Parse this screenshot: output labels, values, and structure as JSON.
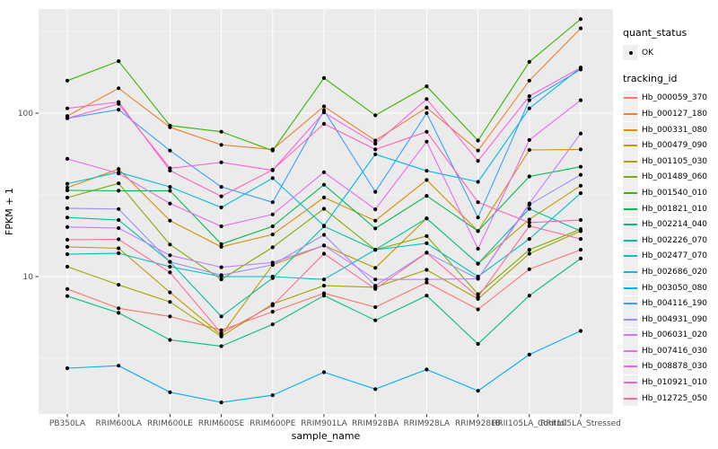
{
  "chart_data": {
    "type": "line",
    "title": "",
    "xlabel": "sample_name",
    "ylabel": "FPKM + 1",
    "y_scale": "log10",
    "y_ticks": [
      100,
      10
    ],
    "y_minor_ticks": [
      316.2,
      31.62,
      3.162
    ],
    "ylim": [
      1.4,
      440
    ],
    "grid": "on",
    "legend_position": "right",
    "marker": "point",
    "categories": [
      "PB350LA",
      "RRIM600LA",
      "RRIM600LE",
      "RRIM600SE",
      "RRIM600PE",
      "RRIM901LA",
      "RRIM928BA",
      "RRIM928LA",
      "RRIM928LB",
      "RRII105LA_Control",
      "RRII105LA_Stressed"
    ],
    "series": [
      {
        "tracking_id": "Hb_000059_370",
        "quant_status": "OK",
        "color": "#F8766D",
        "values": [
          8.4,
          6.4,
          5.7,
          4.7,
          6.1,
          7.9,
          6.5,
          9.2,
          6.3,
          11.1,
          14.6
        ]
      },
      {
        "tracking_id": "Hb_000127_180",
        "quant_status": "OK",
        "color": "#EA8331",
        "values": [
          96,
          142,
          82,
          64,
          60,
          110,
          68,
          108,
          59,
          158,
          330
        ]
      },
      {
        "tracking_id": "Hb_000331_080",
        "quant_status": "OK",
        "color": "#D89000",
        "values": [
          35,
          45.5,
          22,
          15.2,
          18.1,
          30.5,
          22,
          39,
          19,
          59.5,
          60
        ]
      },
      {
        "tracking_id": "Hb_000479_090",
        "quant_status": "OK",
        "color": "#C09B00",
        "values": [
          15.2,
          14.9,
          8.0,
          4.4,
          11.8,
          15.5,
          11.3,
          22.7,
          12,
          22.4,
          36
        ]
      },
      {
        "tracking_id": "Hb_001105_030",
        "quant_status": "OK",
        "color": "#A3A500",
        "values": [
          11.5,
          8.9,
          7.0,
          4.3,
          6.8,
          8.8,
          8.6,
          11,
          7.3,
          13.8,
          19
        ]
      },
      {
        "tracking_id": "Hb_001489_060",
        "quant_status": "OK",
        "color": "#7CAE00",
        "values": [
          30.4,
          37.2,
          15.7,
          9.6,
          15.1,
          26,
          14.6,
          17.7,
          7.8,
          14.6,
          19.5
        ]
      },
      {
        "tracking_id": "Hb_001540_010",
        "quant_status": "OK",
        "color": "#39B600",
        "values": [
          158,
          208,
          84,
          77,
          59,
          164,
          97,
          146,
          68,
          206,
          376
        ]
      },
      {
        "tracking_id": "Hb_001821_010",
        "quant_status": "OK",
        "color": "#00BB4E",
        "values": [
          33.7,
          33.5,
          33.5,
          15.8,
          20.3,
          36.5,
          19.7,
          31.2,
          19,
          41,
          47
        ]
      },
      {
        "tracking_id": "Hb_002214_040",
        "quant_status": "OK",
        "color": "#00BF7D",
        "values": [
          7.6,
          6.0,
          4.1,
          3.75,
          5.1,
          7.65,
          5.4,
          7.65,
          3.87,
          7.65,
          12.9
        ]
      },
      {
        "tracking_id": "Hb_002226_070",
        "quant_status": "OK",
        "color": "#00C1A3",
        "values": [
          23,
          22.2,
          12.3,
          5.7,
          9.8,
          20.3,
          14.6,
          22.7,
          12,
          26,
          19
        ]
      },
      {
        "tracking_id": "Hb_002477_070",
        "quant_status": "OK",
        "color": "#00BFC4",
        "values": [
          13.7,
          13.9,
          11.5,
          10.0,
          10,
          9.6,
          14.6,
          16,
          10,
          17,
          32.4
        ]
      },
      {
        "tracking_id": "Hb_002686_020",
        "quant_status": "OK",
        "color": "#00BAE0",
        "values": [
          37,
          43.5,
          35.4,
          26.5,
          40,
          20.5,
          56,
          44.4,
          38,
          107,
          190
        ]
      },
      {
        "tracking_id": "Hb_003050_080",
        "quant_status": "OK",
        "color": "#00B0F6",
        "values": [
          2.75,
          2.85,
          1.96,
          1.7,
          1.88,
          2.6,
          2.05,
          2.7,
          2.0,
          3.33,
          4.65
        ]
      },
      {
        "tracking_id": "Hb_004116_190",
        "quant_status": "OK",
        "color": "#35A2FF",
        "values": [
          93,
          105,
          59,
          35.4,
          28.5,
          104,
          33,
          100,
          23,
          120,
          185
        ]
      },
      {
        "tracking_id": "Hb_004931_090",
        "quant_status": "OK",
        "color": "#9590FF",
        "values": [
          26.2,
          25.9,
          12.3,
          10.2,
          11.8,
          18,
          8.8,
          14,
          9.7,
          27.5,
          42
        ]
      },
      {
        "tracking_id": "Hb_006031_020",
        "quant_status": "OK",
        "color": "#C77CFF",
        "values": [
          20.1,
          19.8,
          13.5,
          11.4,
          12.2,
          15.5,
          9.6,
          9.6,
          9.7,
          28,
          75
        ]
      },
      {
        "tracking_id": "Hb_007416_030",
        "quant_status": "OK",
        "color": "#E76BF3",
        "values": [
          52.5,
          42.8,
          28,
          20.3,
          24,
          43.5,
          25.8,
          67,
          14.8,
          68.5,
          120
        ]
      },
      {
        "tracking_id": "Hb_008878_030",
        "quant_status": "OK",
        "color": "#FA62DB",
        "values": [
          93,
          114,
          46,
          50,
          44.7,
          101,
          65,
          122,
          51,
          127,
          190
        ]
      },
      {
        "tracking_id": "Hb_010921_010",
        "quant_status": "OK",
        "color": "#FF62BC",
        "values": [
          107,
          117,
          44.5,
          31,
          45,
          86,
          60,
          77,
          28.5,
          21.4,
          22.2
        ]
      },
      {
        "tracking_id": "Hb_012725_050",
        "quant_status": "OK",
        "color": "#FF6A98",
        "values": [
          16.8,
          16.9,
          10.6,
          4.5,
          6.65,
          13.8,
          8.4,
          14,
          7.5,
          20.4,
          17
        ]
      }
    ]
  },
  "legend": {
    "quant_status_title": "quant_status",
    "quant_status_ok_label": "OK",
    "tracking_id_title": "tracking_id"
  },
  "style": {
    "panel_bg": "#EBEBEB",
    "grid_color": "#FFFFFF",
    "axis_text_color": "#4D4D4D",
    "axis_title_color": "#000000",
    "marker_color": "#000000"
  }
}
